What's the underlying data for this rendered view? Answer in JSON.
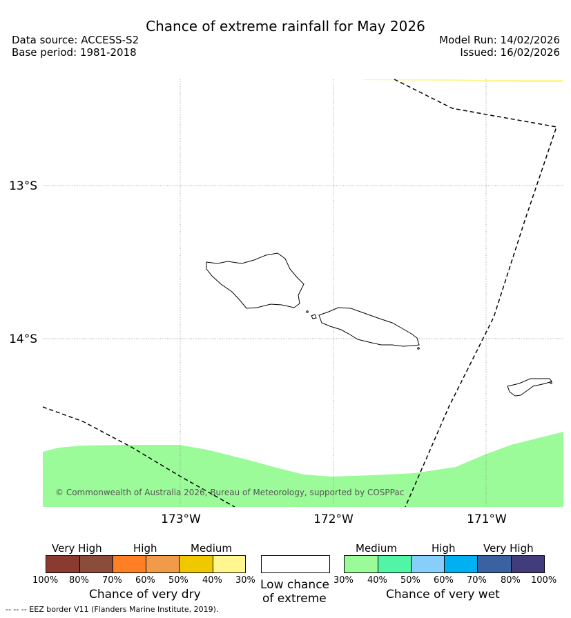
{
  "header": {
    "title": "Chance of extreme rainfall for May 2026",
    "data_source": "Data source: ACCESS-S2",
    "base_period": "Base period: 1981-2018",
    "model_run": "Model Run: 14/02/2026",
    "issued": "Issued: 16/02/2026"
  },
  "map": {
    "lat_labels": [
      "13°S",
      "14°S"
    ],
    "lon_labels": [
      "173°W",
      "172°W",
      "171°W"
    ],
    "copyright": "© Commonwealth of Australia 2026, Bureau of Meteorology, supported by COSPPac"
  },
  "colors": {
    "very_dry_100": "#8b3a32",
    "very_dry_80": "#8b4c3c",
    "dry_70": "#ff7f27",
    "dry_60": "#f09a4a",
    "dry_50": "#f0c800",
    "dry_40": "#fff68f",
    "wet_30": "#9bfb98",
    "wet_40": "#52f5a5",
    "wet_50": "#87cefa",
    "wet_60": "#00b0f0",
    "wet_70": "#3a62a0",
    "wet_80": "#423d7a"
  },
  "legend": {
    "dry": {
      "categories": [
        "Very High",
        "High",
        "Medium"
      ],
      "ticks": [
        "100%",
        "80%",
        "70%",
        "60%",
        "50%",
        "40%",
        "30%"
      ],
      "title": "Chance of very dry"
    },
    "low": {
      "line1": "Low chance",
      "line2": "of extreme"
    },
    "wet": {
      "categories": [
        "Medium",
        "High",
        "Very High"
      ],
      "ticks": [
        "30%",
        "40%",
        "50%",
        "60%",
        "70%",
        "80%",
        "100%"
      ],
      "title": "Chance of very wet"
    },
    "eez_note": "--  --  -- EEZ border V11 (Flanders Marine Institute, 2019)."
  }
}
